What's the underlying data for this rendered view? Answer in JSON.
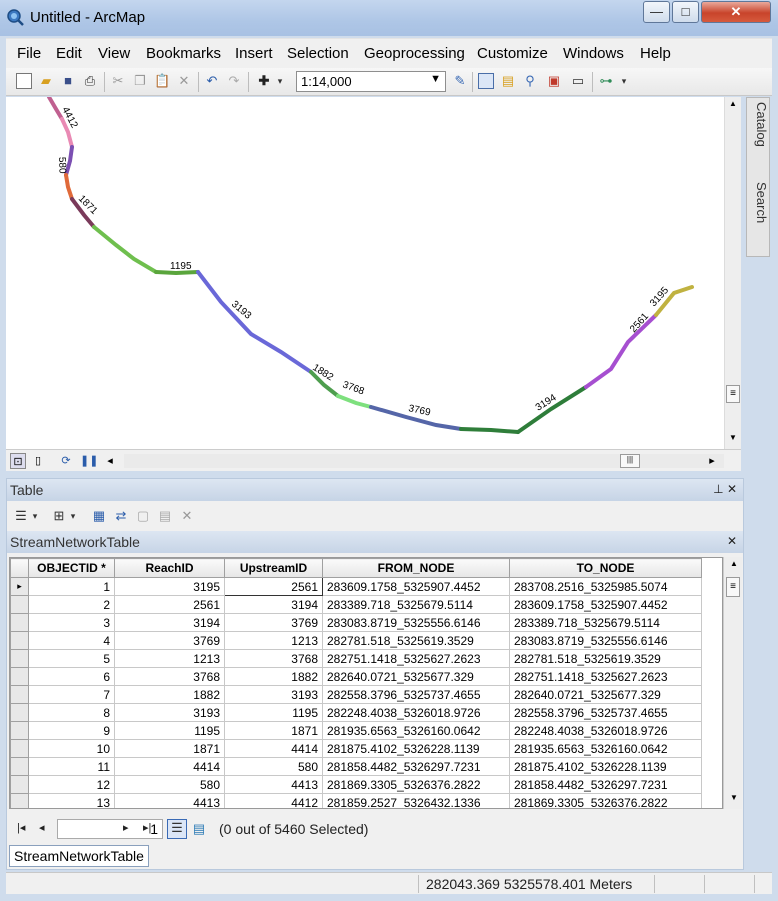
{
  "window": {
    "title": "Untitled - ArcMap",
    "minimize": "—",
    "maximize": "□",
    "close": "✕",
    "colors": {
      "frame": "#aec6e6",
      "close": "#c8442b"
    }
  },
  "menu": {
    "items": [
      "File",
      "Edit",
      "View",
      "Bookmarks",
      "Insert",
      "Selection",
      "Geoprocessing",
      "Customize",
      "Windows",
      "Help"
    ]
  },
  "toolbar": {
    "scale": "1:14,000",
    "icons": [
      "new-document-icon",
      "open-folder-icon",
      "save-icon",
      "print-icon",
      "cut-icon",
      "copy-icon",
      "paste-icon",
      "delete-icon",
      "undo-icon",
      "redo-icon",
      "add-data-icon",
      "editor-toolbar-icon",
      "table-of-contents-icon",
      "catalog-window-icon",
      "search-window-icon",
      "arctoolbox-icon",
      "python-window-icon",
      "model-builder-icon"
    ]
  },
  "side_tabs": [
    "Catalog",
    "Search"
  ],
  "map": {
    "reach_labels": [
      "4412",
      "580",
      "1871",
      "1195",
      "3193",
      "1882",
      "3768",
      "3769",
      "3194",
      "2561",
      "3195"
    ]
  },
  "table": {
    "pane_title": "Table",
    "table_name": "StreamNetworkTable",
    "columns": [
      "OBJECTID *",
      "ReachID",
      "UpstreamID",
      "FROM_NODE",
      "TO_NODE"
    ],
    "rows": [
      [
        "1",
        "3195",
        "2561",
        "283609.1758_5325907.4452",
        "283708.2516_5325985.5074"
      ],
      [
        "2",
        "2561",
        "3194",
        "283389.718_5325679.5114",
        "283609.1758_5325907.4452"
      ],
      [
        "3",
        "3194",
        "3769",
        "283083.8719_5325556.6146",
        "283389.718_5325679.5114"
      ],
      [
        "4",
        "3769",
        "1213",
        "282781.518_5325619.3529",
        "283083.8719_5325556.6146"
      ],
      [
        "5",
        "1213",
        "3768",
        "282751.1418_5325627.2623",
        "282781.518_5325619.3529"
      ],
      [
        "6",
        "3768",
        "1882",
        "282640.0721_5325677.329",
        "282751.1418_5325627.2623"
      ],
      [
        "7",
        "1882",
        "3193",
        "282558.3796_5325737.4655",
        "282640.0721_5325677.329"
      ],
      [
        "8",
        "3193",
        "1195",
        "282248.4038_5326018.9726",
        "282558.3796_5325737.4655"
      ],
      [
        "9",
        "1195",
        "1871",
        "281935.6563_5326160.0642",
        "282248.4038_5326018.9726"
      ],
      [
        "10",
        "1871",
        "4414",
        "281875.4102_5326228.1139",
        "281935.6563_5326160.0642"
      ],
      [
        "11",
        "4414",
        "580",
        "281858.4482_5326297.7231",
        "281875.4102_5326228.1139"
      ],
      [
        "12",
        "580",
        "4413",
        "281869.3305_5326376.2822",
        "281858.4482_5326297.7231"
      ],
      [
        "13",
        "4413",
        "4412",
        "281859.2527_5326432.1336",
        "281869.3305_5326376.2822"
      ]
    ],
    "current_record": "1",
    "selection_status": "(0 out of 5460 Selected)"
  },
  "status": {
    "coordinates": "282043.369  5325578.401 Meters"
  }
}
